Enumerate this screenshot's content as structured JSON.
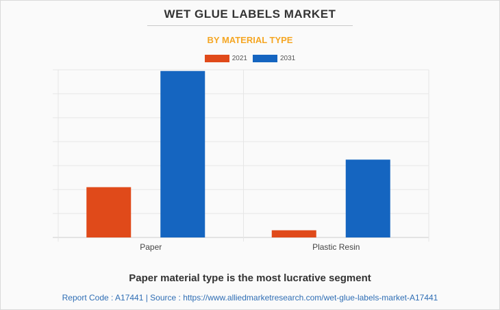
{
  "header": {
    "title": "WET GLUE LABELS MARKET",
    "subtitle": "BY MATERIAL TYPE"
  },
  "chart_data": {
    "type": "bar",
    "categories": [
      "Paper",
      "Plastic Resin"
    ],
    "series": [
      {
        "name": "2021",
        "color": "#e04a1a",
        "values": [
          2.1,
          0.3
        ]
      },
      {
        "name": "2031",
        "color": "#1565c0",
        "values": [
          6.95,
          3.25
        ]
      }
    ],
    "ylim": [
      0,
      7
    ],
    "y_gridlines": 7,
    "grid": true,
    "y_tick_labels_shown": false,
    "legend_position": "top-center"
  },
  "footer": {
    "headline": "Paper material type is the most lucrative segment",
    "source": "Report Code : A17441  |  Source : https://www.alliedmarketresearch.com/wet-glue-labels-market-A17441"
  }
}
